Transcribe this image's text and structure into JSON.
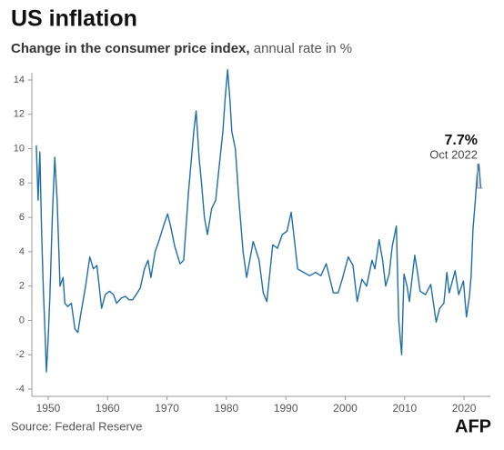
{
  "chart_data": {
    "type": "line",
    "title": "US inflation",
    "subtitle_bold": "Change in the consumer price index,",
    "subtitle": "annual rate in %",
    "source": "Source: Federal Reserve",
    "logo": "AFP",
    "annotations": [
      "7.7%",
      "Oct 2022"
    ],
    "x": [
      1948.0,
      1948.3,
      1948.6,
      1948.9,
      1949.2,
      1949.5,
      1949.7,
      1950.0,
      1950.3,
      1950.7,
      1951.1,
      1951.5,
      1952.0,
      1952.5,
      1952.8,
      1953.3,
      1953.9,
      1954.5,
      1955.0,
      1955.5,
      1956.3,
      1957.0,
      1957.6,
      1958.2,
      1959.0,
      1959.6,
      1960.3,
      1961.0,
      1961.5,
      1962.3,
      1963.0,
      1963.6,
      1964.2,
      1965.0,
      1965.5,
      1966.2,
      1966.8,
      1967.3,
      1968.0,
      1968.7,
      1969.4,
      1970.1,
      1970.6,
      1971.3,
      1972.2,
      1972.8,
      1973.6,
      1974.5,
      1974.9,
      1975.4,
      1975.8,
      1976.3,
      1976.8,
      1977.5,
      1978.2,
      1978.8,
      1979.4,
      1979.8,
      1980.2,
      1980.6,
      1980.9,
      1981.5,
      1982.1,
      1982.8,
      1983.4,
      1984.5,
      1985.5,
      1986.2,
      1986.8,
      1987.8,
      1988.6,
      1989.4,
      1990.2,
      1990.9,
      1991.5,
      1992.0,
      1993.0,
      1994.0,
      1995.0,
      1995.9,
      1996.8,
      1997.5,
      1998.0,
      1998.8,
      1999.5,
      2000.5,
      2001.3,
      2002.0,
      2002.8,
      2003.6,
      2004.5,
      2005.0,
      2005.7,
      2006.3,
      2006.8,
      2007.4,
      2007.9,
      2008.6,
      2009.0,
      2009.5,
      2009.9,
      2010.4,
      2010.8,
      2011.7,
      2012.2,
      2012.6,
      2013.5,
      2014.4,
      2015.3,
      2015.9,
      2016.6,
      2017.1,
      2017.5,
      2018.5,
      2019.1,
      2019.9,
      2020.4,
      2020.9,
      2021.2,
      2021.5,
      2021.9,
      2022.2,
      2022.5,
      2022.8
    ],
    "values": [
      10.2,
      7.0,
      9.8,
      5.0,
      1.7,
      -1.0,
      -3.0,
      -1.0,
      1.5,
      6.0,
      9.5,
      7.0,
      2.0,
      2.5,
      1.0,
      0.8,
      1.0,
      -0.5,
      -0.7,
      0.4,
      2.0,
      3.7,
      3.0,
      3.2,
      0.7,
      1.5,
      1.7,
      1.5,
      1.0,
      1.3,
      1.4,
      1.2,
      1.2,
      1.6,
      1.9,
      3.0,
      3.5,
      2.5,
      4.0,
      4.7,
      5.5,
      6.2,
      5.5,
      4.3,
      3.3,
      3.5,
      7.4,
      11.0,
      12.2,
      9.5,
      8.0,
      6.0,
      5.0,
      6.5,
      7.0,
      9.0,
      11.0,
      13.0,
      14.6,
      12.8,
      11.0,
      10.0,
      7.0,
      4.0,
      2.5,
      4.6,
      3.5,
      1.6,
      1.1,
      4.4,
      4.2,
      5.0,
      5.2,
      6.3,
      4.5,
      3.0,
      2.8,
      2.6,
      2.8,
      2.6,
      3.3,
      2.3,
      1.6,
      1.6,
      2.4,
      3.7,
      3.2,
      1.1,
      2.4,
      2.0,
      3.5,
      3.0,
      4.7,
      3.5,
      2.0,
      2.7,
      4.3,
      5.5,
      0.0,
      -2.0,
      2.7,
      2.0,
      1.1,
      3.8,
      2.7,
      1.7,
      1.5,
      2.1,
      -0.1,
      0.7,
      1.0,
      2.8,
      1.6,
      2.9,
      1.5,
      2.3,
      0.2,
      1.4,
      2.6,
      5.3,
      7.0,
      8.5,
      9.1,
      7.7
    ],
    "color": "#1f6ea8",
    "xlim": [
      1947.8,
      2023.2
    ],
    "xticks": [
      1950,
      1960,
      1970,
      1980,
      1990,
      2000,
      2010,
      2020
    ],
    "ylim": [
      -4,
      14
    ],
    "yticks": [
      -4,
      -2,
      0,
      2,
      4,
      6,
      8,
      10,
      12,
      14
    ],
    "grid": false
  }
}
